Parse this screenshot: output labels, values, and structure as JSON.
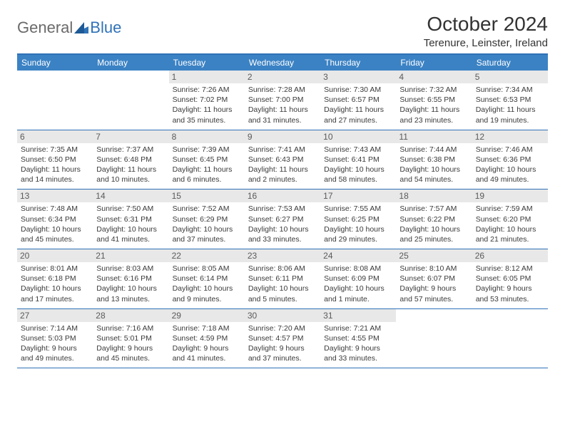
{
  "logo": {
    "general": "General",
    "blue": "Blue"
  },
  "title": "October 2024",
  "location": "Terenure, Leinster, Ireland",
  "colors": {
    "header_bar": "#3b82c4",
    "border": "#2f72b8",
    "day_num_bg": "#e8e8e8",
    "text": "#333333",
    "logo_gray": "#6a6a6a",
    "logo_blue": "#2f72b8"
  },
  "weekdays": [
    "Sunday",
    "Monday",
    "Tuesday",
    "Wednesday",
    "Thursday",
    "Friday",
    "Saturday"
  ],
  "weeks": [
    [
      null,
      null,
      {
        "n": "1",
        "sr": "Sunrise: 7:26 AM",
        "ss": "Sunset: 7:02 PM",
        "d1": "Daylight: 11 hours",
        "d2": "and 35 minutes."
      },
      {
        "n": "2",
        "sr": "Sunrise: 7:28 AM",
        "ss": "Sunset: 7:00 PM",
        "d1": "Daylight: 11 hours",
        "d2": "and 31 minutes."
      },
      {
        "n": "3",
        "sr": "Sunrise: 7:30 AM",
        "ss": "Sunset: 6:57 PM",
        "d1": "Daylight: 11 hours",
        "d2": "and 27 minutes."
      },
      {
        "n": "4",
        "sr": "Sunrise: 7:32 AM",
        "ss": "Sunset: 6:55 PM",
        "d1": "Daylight: 11 hours",
        "d2": "and 23 minutes."
      },
      {
        "n": "5",
        "sr": "Sunrise: 7:34 AM",
        "ss": "Sunset: 6:53 PM",
        "d1": "Daylight: 11 hours",
        "d2": "and 19 minutes."
      }
    ],
    [
      {
        "n": "6",
        "sr": "Sunrise: 7:35 AM",
        "ss": "Sunset: 6:50 PM",
        "d1": "Daylight: 11 hours",
        "d2": "and 14 minutes."
      },
      {
        "n": "7",
        "sr": "Sunrise: 7:37 AM",
        "ss": "Sunset: 6:48 PM",
        "d1": "Daylight: 11 hours",
        "d2": "and 10 minutes."
      },
      {
        "n": "8",
        "sr": "Sunrise: 7:39 AM",
        "ss": "Sunset: 6:45 PM",
        "d1": "Daylight: 11 hours",
        "d2": "and 6 minutes."
      },
      {
        "n": "9",
        "sr": "Sunrise: 7:41 AM",
        "ss": "Sunset: 6:43 PM",
        "d1": "Daylight: 11 hours",
        "d2": "and 2 minutes."
      },
      {
        "n": "10",
        "sr": "Sunrise: 7:43 AM",
        "ss": "Sunset: 6:41 PM",
        "d1": "Daylight: 10 hours",
        "d2": "and 58 minutes."
      },
      {
        "n": "11",
        "sr": "Sunrise: 7:44 AM",
        "ss": "Sunset: 6:38 PM",
        "d1": "Daylight: 10 hours",
        "d2": "and 54 minutes."
      },
      {
        "n": "12",
        "sr": "Sunrise: 7:46 AM",
        "ss": "Sunset: 6:36 PM",
        "d1": "Daylight: 10 hours",
        "d2": "and 49 minutes."
      }
    ],
    [
      {
        "n": "13",
        "sr": "Sunrise: 7:48 AM",
        "ss": "Sunset: 6:34 PM",
        "d1": "Daylight: 10 hours",
        "d2": "and 45 minutes."
      },
      {
        "n": "14",
        "sr": "Sunrise: 7:50 AM",
        "ss": "Sunset: 6:31 PM",
        "d1": "Daylight: 10 hours",
        "d2": "and 41 minutes."
      },
      {
        "n": "15",
        "sr": "Sunrise: 7:52 AM",
        "ss": "Sunset: 6:29 PM",
        "d1": "Daylight: 10 hours",
        "d2": "and 37 minutes."
      },
      {
        "n": "16",
        "sr": "Sunrise: 7:53 AM",
        "ss": "Sunset: 6:27 PM",
        "d1": "Daylight: 10 hours",
        "d2": "and 33 minutes."
      },
      {
        "n": "17",
        "sr": "Sunrise: 7:55 AM",
        "ss": "Sunset: 6:25 PM",
        "d1": "Daylight: 10 hours",
        "d2": "and 29 minutes."
      },
      {
        "n": "18",
        "sr": "Sunrise: 7:57 AM",
        "ss": "Sunset: 6:22 PM",
        "d1": "Daylight: 10 hours",
        "d2": "and 25 minutes."
      },
      {
        "n": "19",
        "sr": "Sunrise: 7:59 AM",
        "ss": "Sunset: 6:20 PM",
        "d1": "Daylight: 10 hours",
        "d2": "and 21 minutes."
      }
    ],
    [
      {
        "n": "20",
        "sr": "Sunrise: 8:01 AM",
        "ss": "Sunset: 6:18 PM",
        "d1": "Daylight: 10 hours",
        "d2": "and 17 minutes."
      },
      {
        "n": "21",
        "sr": "Sunrise: 8:03 AM",
        "ss": "Sunset: 6:16 PM",
        "d1": "Daylight: 10 hours",
        "d2": "and 13 minutes."
      },
      {
        "n": "22",
        "sr": "Sunrise: 8:05 AM",
        "ss": "Sunset: 6:14 PM",
        "d1": "Daylight: 10 hours",
        "d2": "and 9 minutes."
      },
      {
        "n": "23",
        "sr": "Sunrise: 8:06 AM",
        "ss": "Sunset: 6:11 PM",
        "d1": "Daylight: 10 hours",
        "d2": "and 5 minutes."
      },
      {
        "n": "24",
        "sr": "Sunrise: 8:08 AM",
        "ss": "Sunset: 6:09 PM",
        "d1": "Daylight: 10 hours",
        "d2": "and 1 minute."
      },
      {
        "n": "25",
        "sr": "Sunrise: 8:10 AM",
        "ss": "Sunset: 6:07 PM",
        "d1": "Daylight: 9 hours",
        "d2": "and 57 minutes."
      },
      {
        "n": "26",
        "sr": "Sunrise: 8:12 AM",
        "ss": "Sunset: 6:05 PM",
        "d1": "Daylight: 9 hours",
        "d2": "and 53 minutes."
      }
    ],
    [
      {
        "n": "27",
        "sr": "Sunrise: 7:14 AM",
        "ss": "Sunset: 5:03 PM",
        "d1": "Daylight: 9 hours",
        "d2": "and 49 minutes."
      },
      {
        "n": "28",
        "sr": "Sunrise: 7:16 AM",
        "ss": "Sunset: 5:01 PM",
        "d1": "Daylight: 9 hours",
        "d2": "and 45 minutes."
      },
      {
        "n": "29",
        "sr": "Sunrise: 7:18 AM",
        "ss": "Sunset: 4:59 PM",
        "d1": "Daylight: 9 hours",
        "d2": "and 41 minutes."
      },
      {
        "n": "30",
        "sr": "Sunrise: 7:20 AM",
        "ss": "Sunset: 4:57 PM",
        "d1": "Daylight: 9 hours",
        "d2": "and 37 minutes."
      },
      {
        "n": "31",
        "sr": "Sunrise: 7:21 AM",
        "ss": "Sunset: 4:55 PM",
        "d1": "Daylight: 9 hours",
        "d2": "and 33 minutes."
      },
      null,
      null
    ]
  ]
}
